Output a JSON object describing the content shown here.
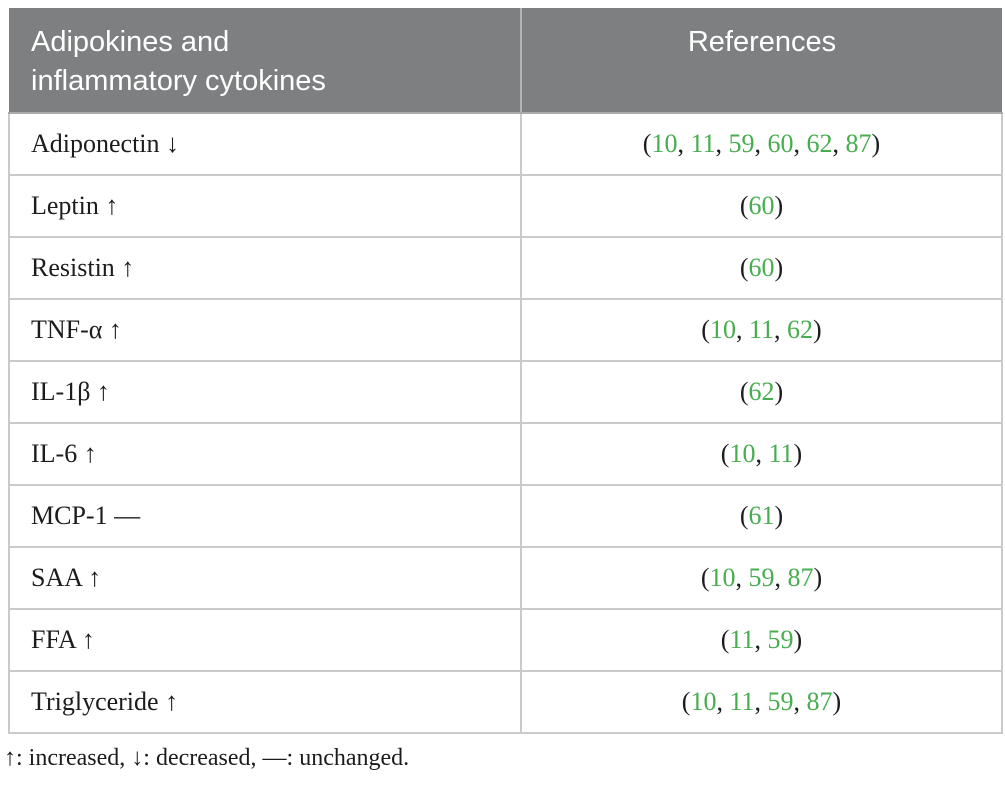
{
  "table": {
    "header": {
      "col1": "Adipokines and inflammatory cytokines",
      "col2": "References"
    },
    "rows": [
      {
        "label": "Adiponectin ↓",
        "refs": [
          "10",
          "11",
          "59",
          "60",
          "62",
          "87"
        ]
      },
      {
        "label": "Leptin ↑",
        "refs": [
          "60"
        ]
      },
      {
        "label": "Resistin ↑",
        "refs": [
          "60"
        ]
      },
      {
        "label": "TNF-α ↑",
        "refs": [
          "10",
          "11",
          "62"
        ]
      },
      {
        "label": "IL-1β ↑",
        "refs": [
          "62"
        ]
      },
      {
        "label": "IL-6 ↑",
        "refs": [
          "10",
          "11"
        ]
      },
      {
        "label": "MCP-1 —",
        "refs": [
          "61"
        ]
      },
      {
        "label": "SAA ↑",
        "refs": [
          "10",
          "59",
          "87"
        ]
      },
      {
        "label": "FFA ↑",
        "refs": [
          "11",
          "59"
        ]
      },
      {
        "label": "Triglyceride ↑",
        "refs": [
          "10",
          "11",
          "59",
          "87"
        ]
      }
    ]
  },
  "footnote": "↑: increased, ↓: decreased, —: unchanged.",
  "colors": {
    "header_bg": "#7d7f80",
    "header_text": "#ffffff",
    "body_text": "#1c1c1e",
    "grid_line": "#c9cacb",
    "header_divider": "#b0b2b4",
    "reference_number": "#47ad4f"
  }
}
